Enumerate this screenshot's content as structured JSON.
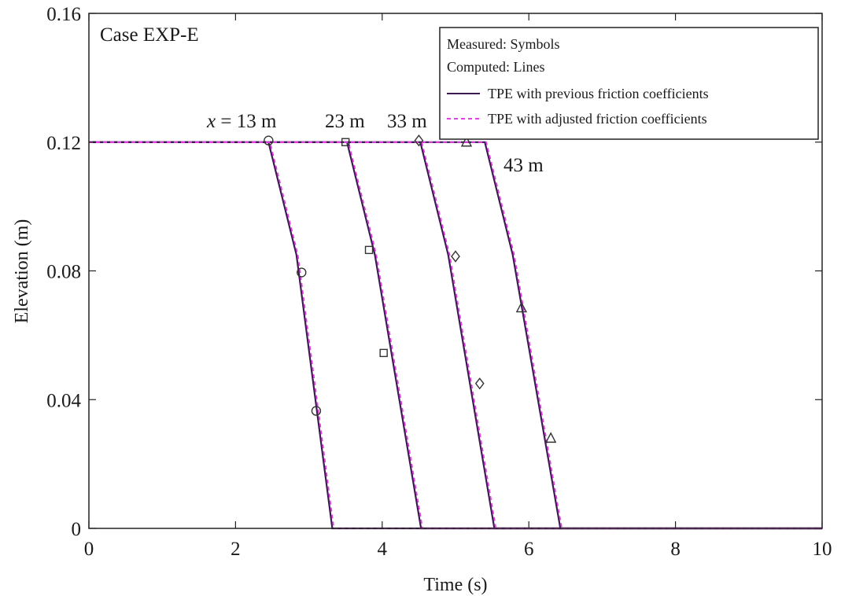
{
  "chart_data": {
    "type": "line",
    "title": "",
    "case_label": "Case EXP-E",
    "xlabel": "Time (s)",
    "ylabel": "Elevation (m)",
    "xlim": [
      0,
      10
    ],
    "ylim": [
      0,
      0.16
    ],
    "xticks": [
      0,
      2,
      4,
      6,
      8,
      10
    ],
    "xtick_labels": [
      "0",
      "2",
      "4",
      "6",
      "8",
      "10"
    ],
    "yticks": [
      0,
      0.04,
      0.08,
      0.12,
      0.16
    ],
    "ytick_labels": [
      "0",
      "0.04",
      "0.08",
      "0.12",
      "0.16"
    ],
    "grid": false,
    "legend_position": "top-right",
    "legend": {
      "header1": "Measured: Symbols",
      "header2": "Computed: Lines",
      "entries": [
        {
          "label": "TPE with previous friction coefficients",
          "style": "solid",
          "color": "#3d1a52"
        },
        {
          "label": "TPE with adjusted friction coefficients",
          "style": "dashed",
          "color": "#e040e0"
        }
      ]
    },
    "annotations": [
      {
        "text": "x = 13 m",
        "x_var": "x",
        "rest": " = 13 m",
        "x": 2.45,
        "y": 0.12
      },
      {
        "text": "23 m",
        "x": 3.5,
        "y": 0.12
      },
      {
        "text": "33 m",
        "x": 4.5,
        "y": 0.12
      },
      {
        "text": "43 m",
        "x": 5.75,
        "y": 0.12
      }
    ],
    "series": [
      {
        "name": "TPE with previous friction coefficients",
        "station": "13 m",
        "x": [
          0,
          2.45,
          2.83,
          3.32,
          10
        ],
        "y": [
          0.12,
          0.12,
          0.085,
          0,
          0
        ]
      },
      {
        "name": "TPE with previous friction coefficients",
        "station": "23 m",
        "x": [
          0,
          3.52,
          3.9,
          4.53,
          10
        ],
        "y": [
          0.12,
          0.12,
          0.085,
          0,
          0
        ]
      },
      {
        "name": "TPE with previous friction coefficients",
        "station": "33 m",
        "x": [
          0,
          4.52,
          4.9,
          5.53,
          10
        ],
        "y": [
          0.12,
          0.12,
          0.085,
          0,
          0
        ]
      },
      {
        "name": "TPE with previous friction coefficients",
        "station": "43 m",
        "x": [
          0,
          5.4,
          5.78,
          6.43,
          10
        ],
        "y": [
          0.12,
          0.12,
          0.085,
          0,
          0
        ]
      },
      {
        "name": "TPE with adjusted friction coefficients",
        "station": "13 m",
        "x": [
          0,
          2.47,
          2.85,
          3.34,
          10
        ],
        "y": [
          0.12,
          0.12,
          0.085,
          0,
          0
        ]
      },
      {
        "name": "TPE with adjusted friction coefficients",
        "station": "23 m",
        "x": [
          0,
          3.54,
          3.92,
          4.55,
          10
        ],
        "y": [
          0.12,
          0.12,
          0.085,
          0,
          0
        ]
      },
      {
        "name": "TPE with adjusted friction coefficients",
        "station": "33 m",
        "x": [
          0,
          4.54,
          4.92,
          5.55,
          10
        ],
        "y": [
          0.12,
          0.12,
          0.085,
          0,
          0
        ]
      },
      {
        "name": "TPE with adjusted friction coefficients",
        "station": "43 m",
        "x": [
          0,
          5.42,
          5.8,
          6.45,
          10
        ],
        "y": [
          0.12,
          0.12,
          0.085,
          0,
          0
        ]
      }
    ],
    "measured": [
      {
        "station": "13 m",
        "marker": "circle",
        "points": [
          [
            2.45,
            0.1205
          ],
          [
            2.9,
            0.0795
          ],
          [
            3.1,
            0.0365
          ]
        ]
      },
      {
        "station": "23 m",
        "marker": "square",
        "points": [
          [
            3.5,
            0.12
          ],
          [
            3.82,
            0.0865
          ],
          [
            4.02,
            0.0545
          ]
        ]
      },
      {
        "station": "33 m",
        "marker": "diamond",
        "points": [
          [
            4.5,
            0.1205
          ],
          [
            5.0,
            0.0845
          ],
          [
            5.33,
            0.045
          ]
        ]
      },
      {
        "station": "43 m",
        "marker": "triangle",
        "points": [
          [
            5.15,
            0.12
          ],
          [
            5.9,
            0.0685
          ],
          [
            6.3,
            0.028
          ]
        ]
      }
    ]
  }
}
